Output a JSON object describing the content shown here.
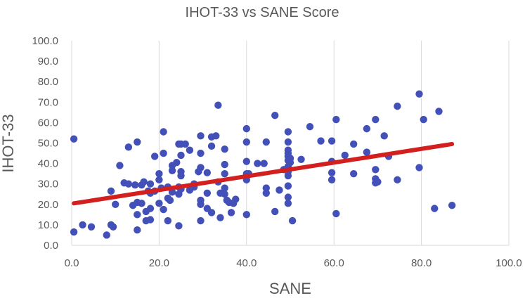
{
  "chart_data": {
    "type": "scatter",
    "title": "IHOT-33 vs SANE Score",
    "xlabel": "SANE",
    "ylabel": "IHOT-33",
    "xlim": [
      0,
      100
    ],
    "ylim": [
      0,
      100
    ],
    "x_ticks": [
      "0.0",
      "20.0",
      "40.0",
      "60.0",
      "80.0",
      "100.0"
    ],
    "y_ticks": [
      "0.0",
      "10.0",
      "20.0",
      "30.0",
      "40.0",
      "50.0",
      "60.0",
      "70.0",
      "80.0",
      "90.0",
      "100.0"
    ],
    "grid": "vertical",
    "legend": "none",
    "colors": {
      "points": "#4250b8",
      "trendline": "#d41f1f",
      "grid": "#d9d9d9",
      "text": "#595959"
    },
    "trendline": {
      "x": [
        0.5,
        87
      ],
      "y": [
        20.5,
        49.5
      ]
    },
    "series": [
      {
        "points": [
          [
            0.5,
            52
          ],
          [
            0.5,
            6.5
          ],
          [
            2.5,
            10
          ],
          [
            4.5,
            9
          ],
          [
            8,
            5
          ],
          [
            9,
            26.5
          ],
          [
            9,
            10
          ],
          [
            9.5,
            9
          ],
          [
            10,
            20
          ],
          [
            11,
            39
          ],
          [
            12,
            30.5
          ],
          [
            13,
            48
          ],
          [
            13,
            30
          ],
          [
            14,
            19.5
          ],
          [
            14.5,
            29.5
          ],
          [
            15,
            50.5
          ],
          [
            15,
            21
          ],
          [
            15,
            15
          ],
          [
            15,
            7.5
          ],
          [
            16,
            29.5
          ],
          [
            16,
            20.5
          ],
          [
            16.5,
            31
          ],
          [
            17,
            12
          ],
          [
            17,
            16.5
          ],
          [
            17.5,
            26.5
          ],
          [
            18,
            30
          ],
          [
            18,
            25.5
          ],
          [
            18,
            18
          ],
          [
            18,
            12.5
          ],
          [
            19,
            43.5
          ],
          [
            19,
            26.5
          ],
          [
            20,
            35
          ],
          [
            20,
            32
          ],
          [
            20,
            20.5
          ],
          [
            20.5,
            28
          ],
          [
            21,
            55.5
          ],
          [
            21,
            45
          ],
          [
            21,
            17.5
          ],
          [
            22,
            28.5
          ],
          [
            22,
            23
          ],
          [
            22,
            12
          ],
          [
            22.5,
            22
          ],
          [
            23,
            39
          ],
          [
            23,
            36.5
          ],
          [
            23,
            26
          ],
          [
            24,
            40.5
          ],
          [
            24.5,
            49.5
          ],
          [
            24.5,
            28.5
          ],
          [
            24.5,
            25
          ],
          [
            24.5,
            9.5
          ],
          [
            25,
            49.5
          ],
          [
            25,
            44
          ],
          [
            25,
            36
          ],
          [
            25,
            34
          ],
          [
            25,
            27.5
          ],
          [
            26,
            49.5
          ],
          [
            27,
            46.5
          ],
          [
            27,
            27
          ],
          [
            28,
            30
          ],
          [
            28,
            28.5
          ],
          [
            29,
            36
          ],
          [
            29.5,
            53.5
          ],
          [
            29.5,
            45
          ],
          [
            29.5,
            38
          ],
          [
            29.5,
            22
          ],
          [
            29.5,
            20
          ],
          [
            29.5,
            12
          ],
          [
            31,
            25.5
          ],
          [
            31,
            18
          ],
          [
            31,
            35.5
          ],
          [
            32,
            53
          ],
          [
            32,
            48.5
          ],
          [
            32,
            16
          ],
          [
            33,
            53.5
          ],
          [
            33.5,
            68.5
          ],
          [
            33.5,
            31
          ],
          [
            34,
            25.5
          ],
          [
            34,
            13.5
          ],
          [
            35,
            47
          ],
          [
            35,
            39.5
          ],
          [
            35,
            35
          ],
          [
            35,
            28
          ],
          [
            35,
            25
          ],
          [
            35.5,
            22
          ],
          [
            36,
            21
          ],
          [
            36.5,
            16
          ],
          [
            37,
            20.5
          ],
          [
            37.5,
            22.5
          ],
          [
            40,
            57
          ],
          [
            40,
            50.5
          ],
          [
            40,
            41
          ],
          [
            40,
            35
          ],
          [
            40,
            32
          ],
          [
            40,
            15
          ],
          [
            40.5,
            35
          ],
          [
            42.5,
            40
          ],
          [
            44,
            40
          ],
          [
            44.5,
            50.5
          ],
          [
            44.5,
            28
          ],
          [
            44.5,
            25.5
          ],
          [
            46.5,
            63.5
          ],
          [
            46.5,
            16.5
          ],
          [
            47.5,
            27
          ],
          [
            48.5,
            37
          ],
          [
            49.5,
            55.5
          ],
          [
            49.5,
            50.5
          ],
          [
            49.5,
            46.5
          ],
          [
            49.5,
            45
          ],
          [
            49.5,
            43.5
          ],
          [
            49.5,
            41.5
          ],
          [
            49.5,
            38.5
          ],
          [
            49.5,
            36
          ],
          [
            49.5,
            34
          ],
          [
            49.5,
            29
          ],
          [
            49.5,
            23.5
          ],
          [
            49.5,
            20.5
          ],
          [
            50,
            42.5
          ],
          [
            50,
            40.5
          ],
          [
            50.5,
            12
          ],
          [
            52.5,
            42
          ],
          [
            54.5,
            58
          ],
          [
            57,
            51
          ],
          [
            59.5,
            51
          ],
          [
            59.5,
            41
          ],
          [
            59.5,
            35.5
          ],
          [
            59.5,
            32
          ],
          [
            60.5,
            61.5
          ],
          [
            60.5,
            15.5
          ],
          [
            62.5,
            44
          ],
          [
            64.5,
            49.5
          ],
          [
            64.5,
            35
          ],
          [
            67.5,
            57
          ],
          [
            67.5,
            45.5
          ],
          [
            69.5,
            61.5
          ],
          [
            69.5,
            37
          ],
          [
            69.5,
            32.5
          ],
          [
            69.5,
            30.5
          ],
          [
            70,
            31
          ],
          [
            71.5,
            53.5
          ],
          [
            72.5,
            43.5
          ],
          [
            74.5,
            68
          ],
          [
            74.5,
            32
          ],
          [
            79.5,
            74
          ],
          [
            79.5,
            38
          ],
          [
            80.5,
            61.5
          ],
          [
            83,
            18
          ],
          [
            84,
            65.5
          ],
          [
            87,
            19.5
          ]
        ]
      }
    ]
  }
}
